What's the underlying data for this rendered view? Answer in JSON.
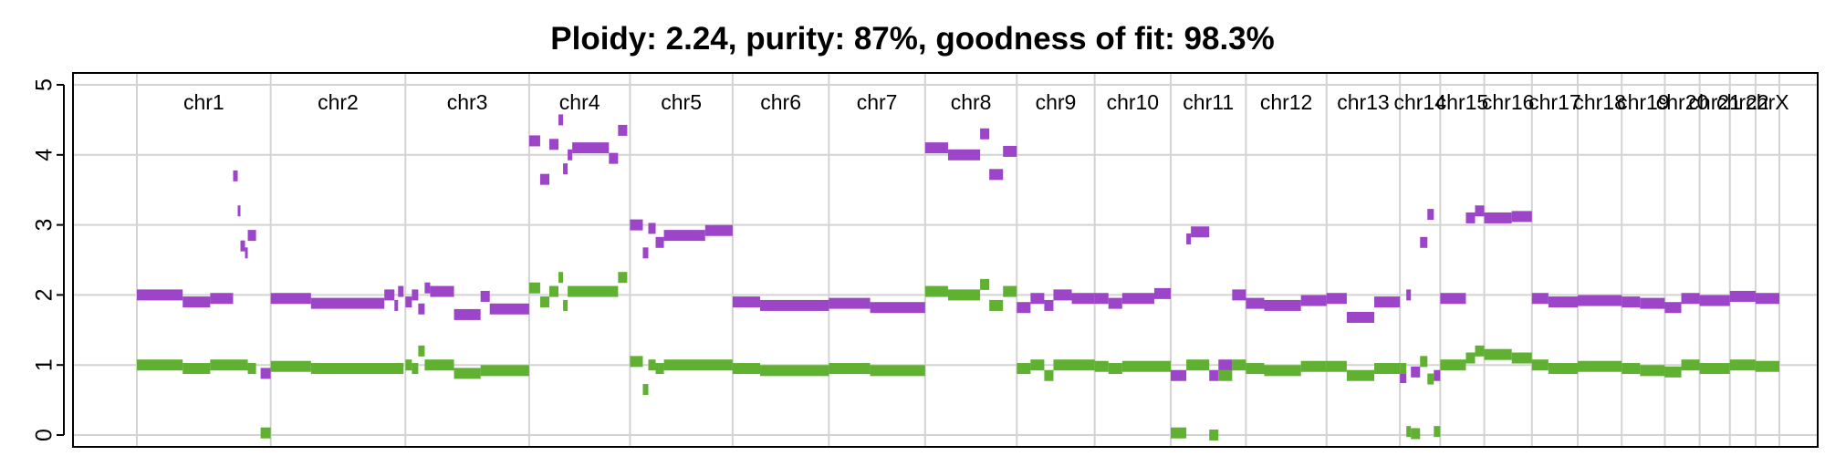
{
  "chart_data": {
    "type": "scatter",
    "title": "Ploidy: 2.24, purity: 87%, goodness of fit: 98.3%",
    "xlabel": "",
    "ylabel": "",
    "ylim": [
      0,
      5
    ],
    "yticks": [
      "0",
      "1",
      "2",
      "3",
      "4",
      "5"
    ],
    "grid": true,
    "colors": {
      "total": "#9c45c8",
      "minor": "#60b032",
      "grid": "#d3d3d3"
    },
    "chromosomes": [
      {
        "label": "chr1",
        "start": 0,
        "end": 146
      },
      {
        "label": "chr2",
        "start": 146,
        "end": 293
      },
      {
        "label": "chr3",
        "start": 293,
        "end": 428
      },
      {
        "label": "chr4",
        "start": 428,
        "end": 538
      },
      {
        "label": "chr5",
        "start": 538,
        "end": 650
      },
      {
        "label": "chr6",
        "start": 650,
        "end": 755
      },
      {
        "label": "chr7",
        "start": 755,
        "end": 860
      },
      {
        "label": "chr8",
        "start": 860,
        "end": 960
      },
      {
        "label": "chr9",
        "start": 960,
        "end": 1045
      },
      {
        "label": "chr10",
        "start": 1045,
        "end": 1128
      },
      {
        "label": "chr11",
        "start": 1128,
        "end": 1210
      },
      {
        "label": "chr12",
        "start": 1210,
        "end": 1298
      },
      {
        "label": "chr13",
        "start": 1298,
        "end": 1378
      },
      {
        "label": "chr14",
        "start": 1378,
        "end": 1422
      },
      {
        "label": "chr15",
        "start": 1422,
        "end": 1470
      },
      {
        "label": "chr16",
        "start": 1470,
        "end": 1522
      },
      {
        "label": "chr17",
        "start": 1522,
        "end": 1572
      },
      {
        "label": "chr18",
        "start": 1572,
        "end": 1620
      },
      {
        "label": "chr19",
        "start": 1620,
        "end": 1667
      },
      {
        "label": "chr20",
        "start": 1667,
        "end": 1705
      },
      {
        "label": "chr21",
        "start": 1705,
        "end": 1738
      },
      {
        "label": "chr22",
        "start": 1738,
        "end": 1766
      },
      {
        "label": "chrX",
        "start": 1766,
        "end": 1792
      }
    ],
    "series": [
      {
        "name": "",
        "color": "#9c45c8",
        "segments": [
          [
            0,
            50,
            2.0
          ],
          [
            50,
            80,
            1.9
          ],
          [
            80,
            105,
            1.95
          ],
          [
            105,
            110,
            3.7
          ],
          [
            110,
            113,
            3.2
          ],
          [
            113,
            118,
            2.7
          ],
          [
            118,
            121,
            2.6
          ],
          [
            121,
            130,
            2.85
          ],
          [
            135,
            146,
            0.88
          ],
          [
            146,
            190,
            1.95
          ],
          [
            190,
            270,
            1.88
          ],
          [
            270,
            281,
            2.0
          ],
          [
            281,
            285,
            1.85
          ],
          [
            285,
            291,
            2.05
          ],
          [
            293,
            300,
            1.9
          ],
          [
            300,
            307,
            2.0
          ],
          [
            307,
            314,
            1.8
          ],
          [
            314,
            320,
            2.1
          ],
          [
            320,
            346,
            2.05
          ],
          [
            346,
            375,
            1.72
          ],
          [
            375,
            385,
            1.98
          ],
          [
            385,
            428,
            1.8
          ],
          [
            428,
            440,
            4.2
          ],
          [
            440,
            450,
            3.65
          ],
          [
            450,
            460,
            4.15
          ],
          [
            460,
            465,
            4.5
          ],
          [
            465,
            470,
            3.8
          ],
          [
            470,
            475,
            4.0
          ],
          [
            475,
            515,
            4.1
          ],
          [
            515,
            525,
            3.95
          ],
          [
            525,
            535,
            4.35
          ],
          [
            538,
            552,
            3.0
          ],
          [
            552,
            558,
            2.6
          ],
          [
            558,
            566,
            2.95
          ],
          [
            566,
            575,
            2.75
          ],
          [
            575,
            620,
            2.85
          ],
          [
            620,
            650,
            2.92
          ],
          [
            650,
            680,
            1.9
          ],
          [
            680,
            755,
            1.85
          ],
          [
            755,
            800,
            1.88
          ],
          [
            800,
            860,
            1.82
          ],
          [
            860,
            885,
            4.1
          ],
          [
            885,
            920,
            4.0
          ],
          [
            920,
            930,
            4.3
          ],
          [
            930,
            945,
            3.72
          ],
          [
            945,
            960,
            4.05
          ],
          [
            960,
            975,
            1.82
          ],
          [
            975,
            990,
            1.95
          ],
          [
            990,
            1000,
            1.85
          ],
          [
            1000,
            1020,
            2.0
          ],
          [
            1020,
            1045,
            1.95
          ],
          [
            1045,
            1060,
            1.95
          ],
          [
            1060,
            1075,
            1.88
          ],
          [
            1075,
            1110,
            1.95
          ],
          [
            1110,
            1128,
            2.02
          ],
          [
            1128,
            1145,
            0.85
          ],
          [
            1145,
            1150,
            2.8
          ],
          [
            1150,
            1170,
            2.9
          ],
          [
            1170,
            1180,
            0.85
          ],
          [
            1180,
            1195,
            1.0
          ],
          [
            1195,
            1210,
            2.0
          ],
          [
            1210,
            1230,
            1.88
          ],
          [
            1230,
            1270,
            1.85
          ],
          [
            1270,
            1298,
            1.92
          ],
          [
            1298,
            1320,
            1.95
          ],
          [
            1320,
            1350,
            1.68
          ],
          [
            1350,
            1378,
            1.9
          ],
          [
            1378,
            1385,
            0.82
          ],
          [
            1385,
            1390,
            2.0
          ],
          [
            1390,
            1400,
            0.9
          ],
          [
            1400,
            1408,
            2.75
          ],
          [
            1408,
            1415,
            3.15
          ],
          [
            1415,
            1422,
            0.85
          ],
          [
            1422,
            1450,
            1.95
          ],
          [
            1450,
            1460,
            3.1
          ],
          [
            1460,
            1470,
            3.2
          ],
          [
            1470,
            1500,
            3.1
          ],
          [
            1500,
            1522,
            3.12
          ],
          [
            1522,
            1540,
            1.95
          ],
          [
            1540,
            1572,
            1.9
          ],
          [
            1572,
            1620,
            1.92
          ],
          [
            1620,
            1640,
            1.9
          ],
          [
            1640,
            1667,
            1.88
          ],
          [
            1667,
            1685,
            1.82
          ],
          [
            1685,
            1705,
            1.95
          ],
          [
            1705,
            1738,
            1.92
          ],
          [
            1738,
            1766,
            1.98
          ],
          [
            1766,
            1792,
            1.95
          ]
        ]
      },
      {
        "name": "",
        "color": "#60b032",
        "segments": [
          [
            0,
            50,
            1.0
          ],
          [
            50,
            80,
            0.95
          ],
          [
            80,
            110,
            1.0
          ],
          [
            110,
            121,
            1.0
          ],
          [
            121,
            130,
            0.95
          ],
          [
            135,
            146,
            0.03
          ],
          [
            146,
            190,
            0.98
          ],
          [
            190,
            291,
            0.95
          ],
          [
            293,
            300,
            1.0
          ],
          [
            300,
            307,
            0.95
          ],
          [
            307,
            314,
            1.2
          ],
          [
            314,
            346,
            1.0
          ],
          [
            346,
            375,
            0.88
          ],
          [
            375,
            428,
            0.92
          ],
          [
            428,
            440,
            2.1
          ],
          [
            440,
            450,
            1.9
          ],
          [
            450,
            460,
            2.05
          ],
          [
            460,
            465,
            2.25
          ],
          [
            465,
            470,
            1.85
          ],
          [
            470,
            525,
            2.05
          ],
          [
            525,
            535,
            2.25
          ],
          [
            538,
            552,
            1.05
          ],
          [
            552,
            558,
            0.65
          ],
          [
            558,
            566,
            1.0
          ],
          [
            566,
            575,
            0.95
          ],
          [
            575,
            650,
            1.0
          ],
          [
            650,
            680,
            0.95
          ],
          [
            680,
            755,
            0.92
          ],
          [
            755,
            800,
            0.95
          ],
          [
            800,
            860,
            0.92
          ],
          [
            860,
            885,
            2.05
          ],
          [
            885,
            920,
            2.0
          ],
          [
            920,
            930,
            2.15
          ],
          [
            930,
            945,
            1.85
          ],
          [
            945,
            960,
            2.05
          ],
          [
            960,
            975,
            0.95
          ],
          [
            975,
            990,
            1.0
          ],
          [
            990,
            1000,
            0.85
          ],
          [
            1000,
            1045,
            1.0
          ],
          [
            1045,
            1060,
            0.98
          ],
          [
            1060,
            1075,
            0.95
          ],
          [
            1075,
            1128,
            0.98
          ],
          [
            1128,
            1145,
            0.03
          ],
          [
            1145,
            1170,
            1.0
          ],
          [
            1170,
            1180,
            0.0
          ],
          [
            1180,
            1195,
            0.85
          ],
          [
            1195,
            1210,
            1.0
          ],
          [
            1210,
            1230,
            0.95
          ],
          [
            1230,
            1270,
            0.92
          ],
          [
            1270,
            1298,
            0.98
          ],
          [
            1298,
            1320,
            0.98
          ],
          [
            1320,
            1350,
            0.85
          ],
          [
            1350,
            1378,
            0.95
          ],
          [
            1378,
            1385,
            0.95
          ],
          [
            1385,
            1390,
            0.05
          ],
          [
            1390,
            1400,
            0.02
          ],
          [
            1400,
            1408,
            1.05
          ],
          [
            1408,
            1415,
            0.8
          ],
          [
            1415,
            1422,
            0.05
          ],
          [
            1422,
            1450,
            1.0
          ],
          [
            1450,
            1460,
            1.1
          ],
          [
            1460,
            1470,
            1.2
          ],
          [
            1470,
            1500,
            1.15
          ],
          [
            1500,
            1522,
            1.1
          ],
          [
            1522,
            1540,
            1.0
          ],
          [
            1540,
            1572,
            0.95
          ],
          [
            1572,
            1620,
            0.98
          ],
          [
            1620,
            1640,
            0.95
          ],
          [
            1640,
            1667,
            0.92
          ],
          [
            1667,
            1685,
            0.9
          ],
          [
            1685,
            1705,
            1.0
          ],
          [
            1705,
            1738,
            0.95
          ],
          [
            1738,
            1766,
            1.0
          ],
          [
            1766,
            1792,
            0.98
          ]
        ]
      }
    ]
  }
}
